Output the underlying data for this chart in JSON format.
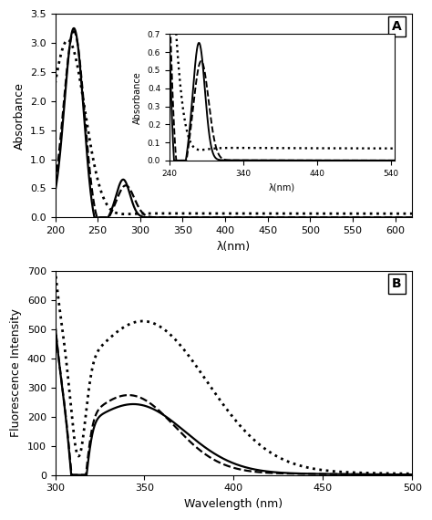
{
  "panel_A": {
    "label": "A",
    "xlabel": "λ(nm)",
    "ylabel": "Absorbance",
    "xlim": [
      200,
      620
    ],
    "ylim": [
      0,
      3.5
    ],
    "xticks": [
      200,
      250,
      300,
      350,
      400,
      450,
      500,
      550,
      600
    ],
    "yticks": [
      0,
      0.5,
      1.0,
      1.5,
      2.0,
      2.5,
      3.0,
      3.5
    ],
    "inset": {
      "xlim": [
        240,
        545
      ],
      "ylim": [
        0,
        0.7
      ],
      "xlabel": "λ(nm)",
      "ylabel": "Absorbance",
      "xticks": [
        240,
        340,
        440,
        540
      ],
      "yticks": [
        0,
        0.1,
        0.2,
        0.3,
        0.4,
        0.5,
        0.6,
        0.7
      ]
    }
  },
  "panel_B": {
    "label": "B",
    "xlabel": "Wavelength (nm)",
    "ylabel": "Fluorescence Intensity",
    "xlim": [
      300,
      500
    ],
    "ylim": [
      0,
      700
    ],
    "xticks": [
      300,
      350,
      400,
      450,
      500
    ],
    "yticks": [
      0,
      100,
      200,
      300,
      400,
      500,
      600,
      700
    ]
  },
  "line_styles": {
    "solid": {
      "linestyle": "-",
      "linewidth": 1.6,
      "color": "#000000"
    },
    "dashed": {
      "linestyle": "--",
      "linewidth": 1.6,
      "color": "#000000"
    },
    "dotted": {
      "linestyle": ":",
      "linewidth": 2.0,
      "color": "#000000",
      "dashes": [
        1,
        2
      ]
    }
  }
}
